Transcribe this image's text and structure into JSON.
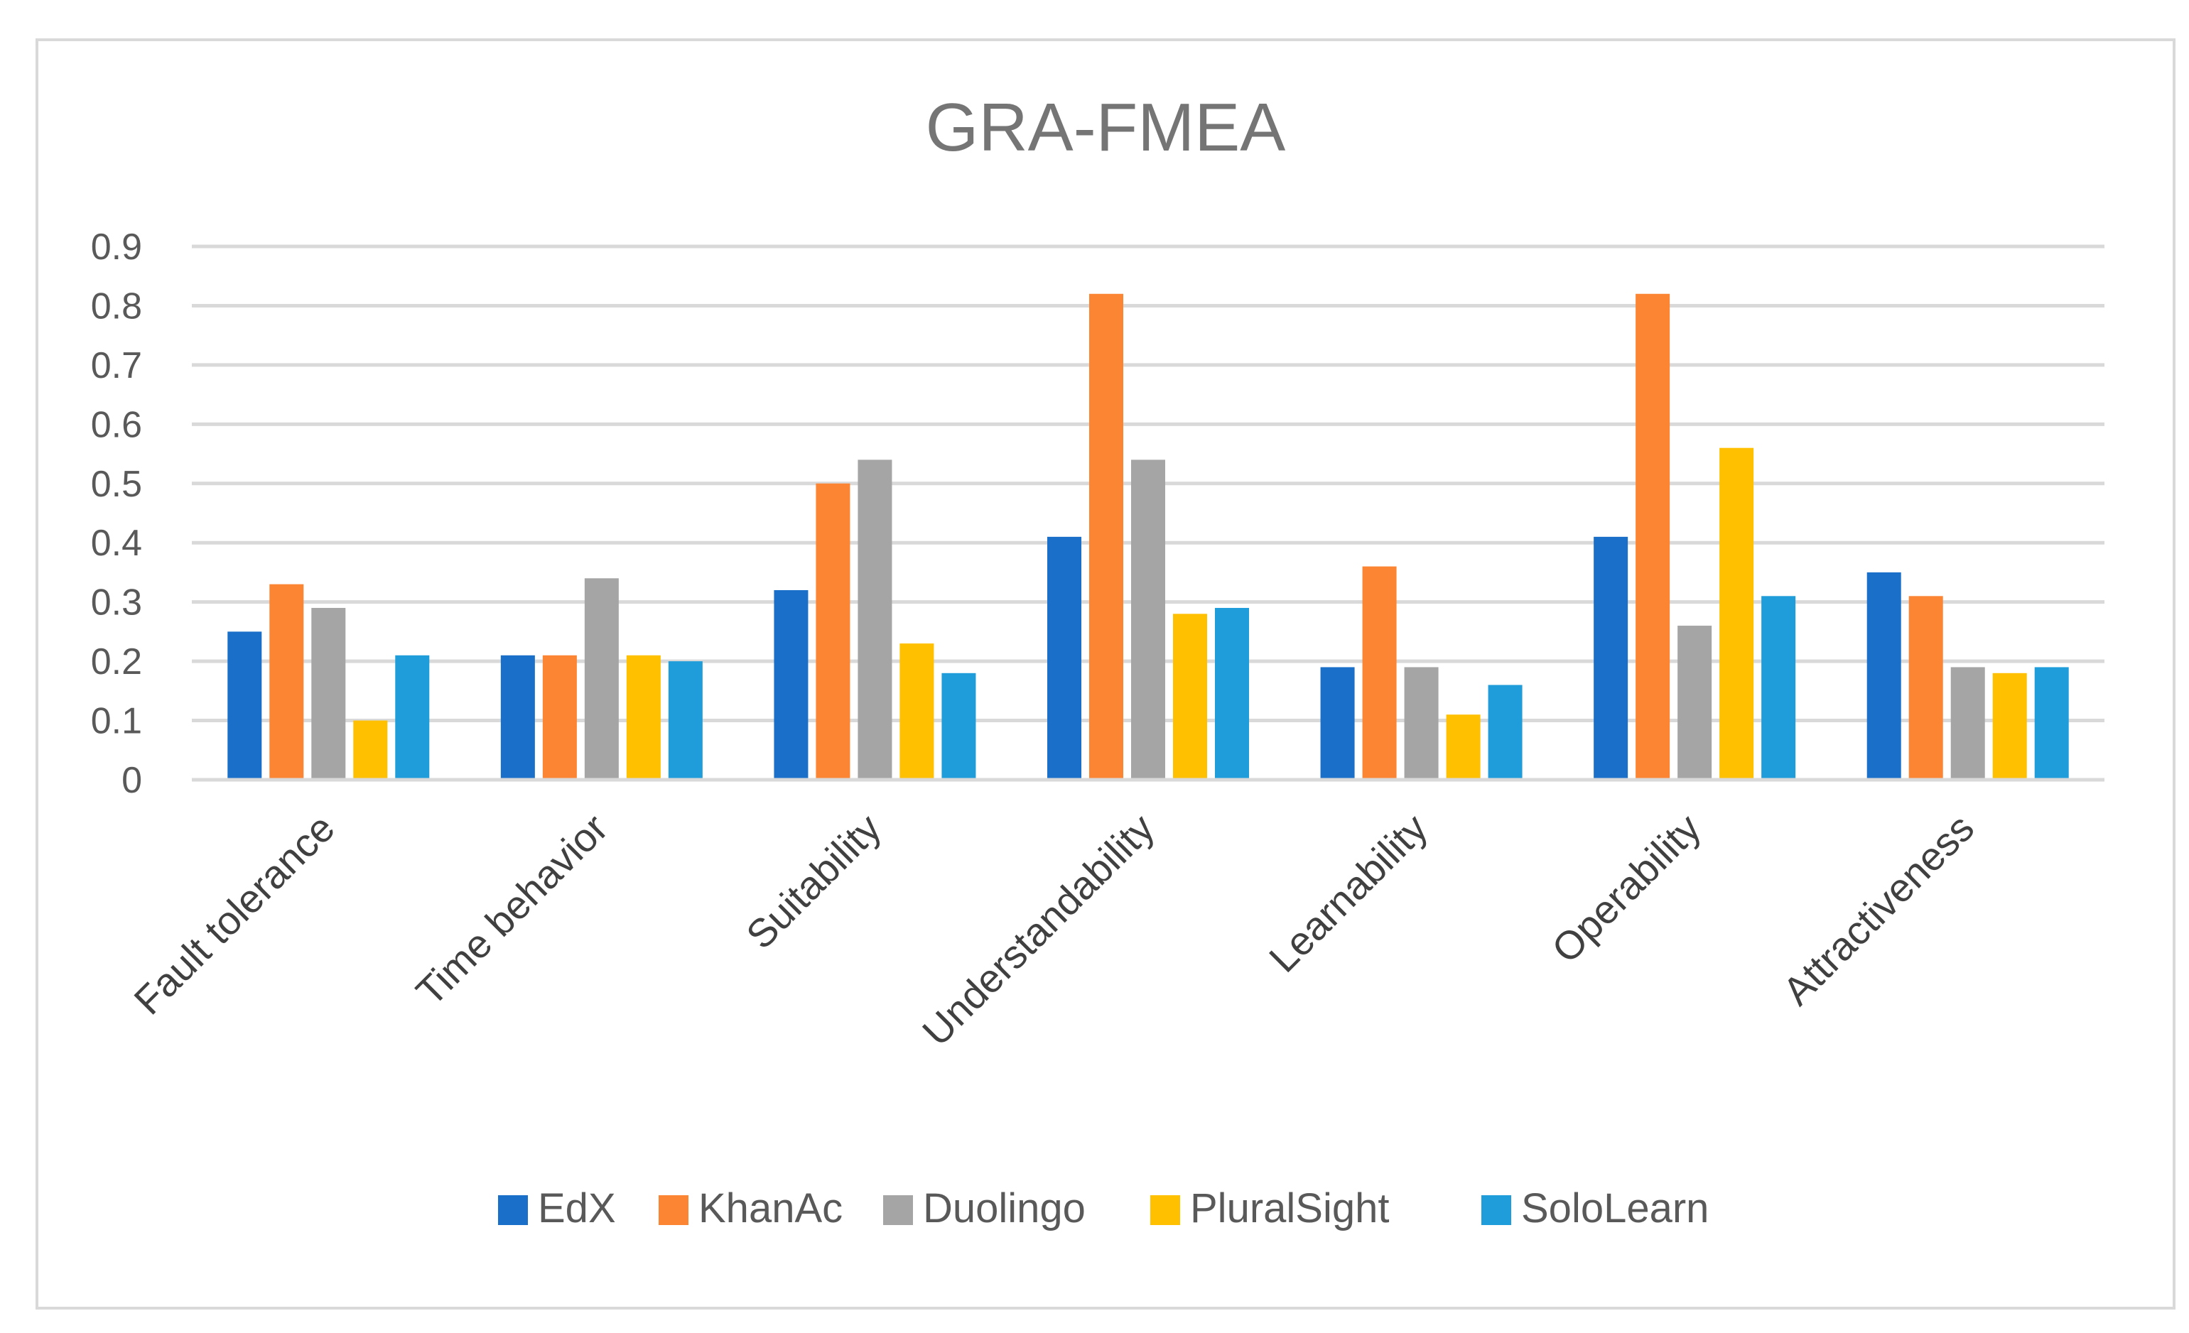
{
  "chart_data": {
    "type": "bar",
    "title": "GRA-FMEA",
    "xlabel": "",
    "ylabel": "",
    "ylim": [
      0,
      0.9
    ],
    "yticks": [
      0,
      0.1,
      0.2,
      0.3,
      0.4,
      0.5,
      0.6,
      0.7,
      0.8,
      0.9
    ],
    "ytick_labels": [
      "0",
      "0.1",
      "0.2",
      "0.3",
      "0.4",
      "0.5",
      "0.6",
      "0.7",
      "0.8",
      "0.9"
    ],
    "grid": true,
    "legend_position": "bottom",
    "categories": [
      "Fault tolerance",
      "Time behavior",
      "Suitability",
      "Understandability",
      "Learnability",
      "Operability",
      "Attractiveness"
    ],
    "series": [
      {
        "name": "EdX",
        "color": "#1a6fc9",
        "values": [
          0.25,
          0.21,
          0.32,
          0.41,
          0.19,
          0.41,
          0.35
        ]
      },
      {
        "name": "KhanAc",
        "color": "#fb8532",
        "values": [
          0.33,
          0.21,
          0.5,
          0.82,
          0.36,
          0.82,
          0.31
        ]
      },
      {
        "name": "Duolingo",
        "color": "#a5a5a5",
        "values": [
          0.29,
          0.34,
          0.54,
          0.54,
          0.19,
          0.26,
          0.19
        ]
      },
      {
        "name": "PluralSight",
        "color": "#ffc000",
        "values": [
          0.1,
          0.21,
          0.23,
          0.28,
          0.11,
          0.56,
          0.18
        ]
      },
      {
        "name": "SoloLearn",
        "color": "#1f9ddb",
        "values": [
          0.21,
          0.2,
          0.18,
          0.29,
          0.16,
          0.31,
          0.19
        ]
      }
    ]
  }
}
